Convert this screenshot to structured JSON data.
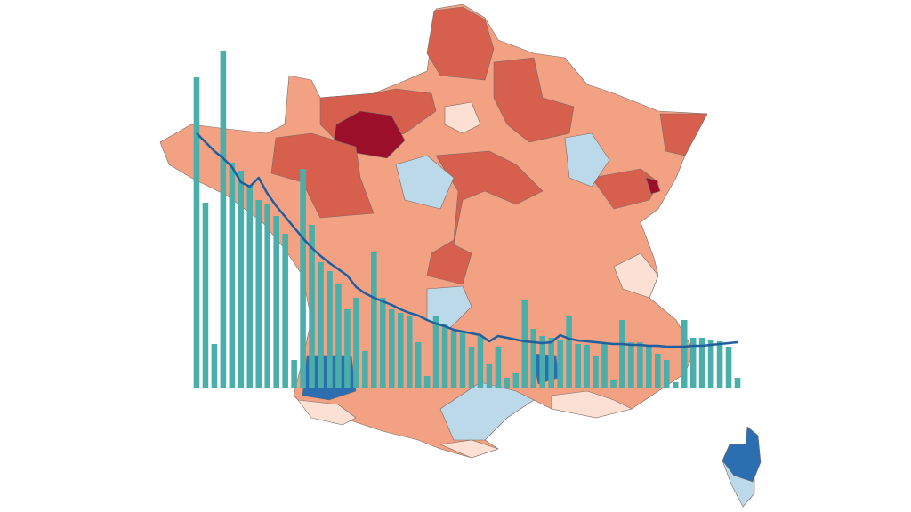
{
  "chart_data": {
    "type": "bar",
    "categories": [
      null,
      null,
      null,
      null,
      null,
      null,
      null,
      null,
      null,
      null,
      null,
      null,
      null,
      null,
      null,
      null,
      null,
      null,
      null,
      null,
      null,
      null,
      null,
      null,
      null,
      null,
      null,
      null,
      null,
      null,
      null,
      null,
      null,
      null,
      null,
      null,
      null,
      null,
      null,
      null,
      null,
      null,
      null,
      null,
      null,
      null,
      null,
      null,
      null,
      null,
      null,
      null,
      null,
      null,
      null,
      null,
      null,
      null,
      null,
      null,
      null,
      null
    ],
    "series": [
      {
        "type": "bar",
        "color": "#4aaeaa",
        "values": [
          350,
          209,
          50,
          380,
          254,
          245,
          229,
          212,
          207,
          194,
          174,
          32,
          247,
          184,
          142,
          132,
          117,
          89,
          102,
          42,
          154,
          102,
          89,
          85,
          82,
          52,
          14,
          82,
          72,
          65,
          65,
          47,
          59,
          27,
          47,
          12,
          17,
          99,
          67,
          59,
          57,
          55,
          81,
          50,
          49,
          37,
          52,
          10,
          77,
          52,
          52,
          47,
          39,
          32,
          7,
          77,
          57,
          57,
          55,
          53,
          47,
          12
        ]
      },
      {
        "type": "line",
        "color": "#1f5f9e",
        "values": [
          287,
          277,
          267,
          259,
          249,
          232,
          227,
          237,
          219,
          205,
          193,
          181,
          169,
          158,
          149,
          141,
          134,
          127,
          114,
          107,
          102,
          98,
          94,
          89,
          85,
          82,
          77,
          73,
          70,
          66,
          64,
          62,
          60,
          53,
          59,
          57,
          55,
          53,
          52,
          51,
          52,
          60,
          56,
          54,
          53,
          52,
          51,
          50,
          50,
          49,
          49,
          48,
          48,
          47,
          47,
          47,
          48,
          48,
          49,
          50,
          51,
          52
        ]
      }
    ],
    "ylim": [
      0,
      400
    ]
  }
}
